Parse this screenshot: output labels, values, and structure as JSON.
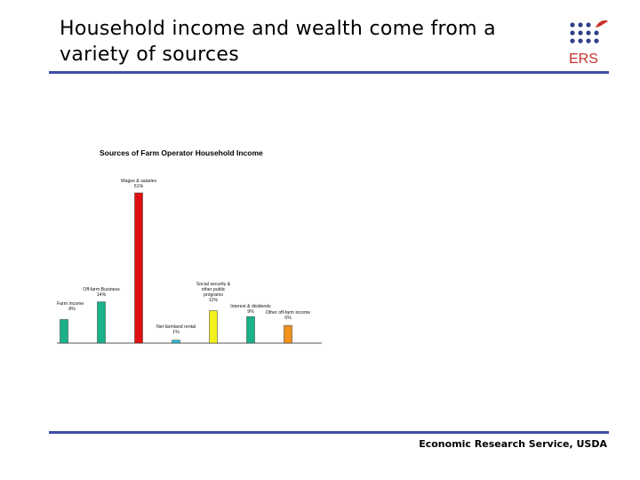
{
  "slide": {
    "title": "Household income and wealth come from a variety of sources",
    "footer": "Economic Research Service, USDA",
    "logo_text": "ERS"
  },
  "colors": {
    "rule": "#3f4ea8",
    "logo_dots": "#2f3f88",
    "logo_leaf": "#c8322d"
  },
  "chart_data": {
    "type": "bar",
    "title": "Sources of Farm Operator Household Income",
    "xlabel": "",
    "ylabel": "",
    "ylim": [
      0,
      51
    ],
    "grid": false,
    "categories": [
      "Farm income",
      "Off-farm Business",
      "Wages & salaries",
      "Net farmland rental",
      "Social security & other public programs",
      "Interest & dividends",
      "Other off-farm income"
    ],
    "value_labels": [
      "8%",
      "14%",
      "51%",
      "1%",
      "11%",
      "9%",
      "6%"
    ],
    "values": [
      8,
      14,
      51,
      1,
      11,
      9,
      6
    ],
    "bar_colors": [
      "#19b28a",
      "#19b28a",
      "#e01010",
      "#22bcd0",
      "#f2f21a",
      "#19b28a",
      "#f2901e"
    ]
  }
}
